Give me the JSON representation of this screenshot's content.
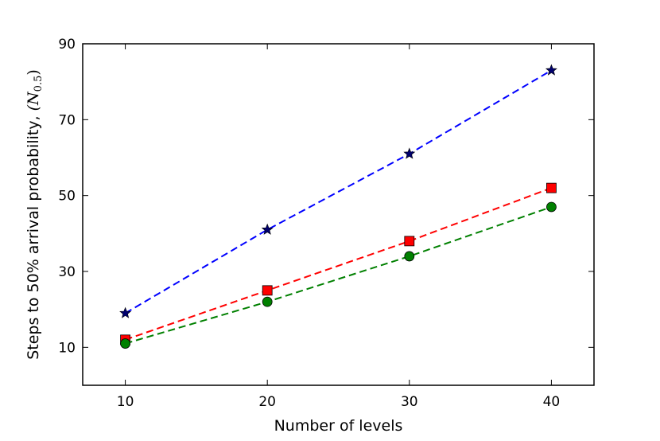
{
  "chart_data": {
    "type": "line",
    "title": "",
    "xlabel": "Number of levels",
    "ylabel": "Steps to 50% arrival probability, ",
    "ylabel_math": "(N",
    "ylabel_sub": "0.5",
    "ylabel_close": ")",
    "xlim": [
      7,
      43
    ],
    "ylim": [
      0,
      90
    ],
    "xticks": [
      10,
      20,
      30,
      40
    ],
    "yticks": [
      10,
      30,
      50,
      70,
      90
    ],
    "grid": false,
    "legend": "none",
    "x": [
      10,
      20,
      30,
      40
    ],
    "series": [
      {
        "name": "blue-star",
        "color": "#0000ff",
        "marker": "star",
        "values": [
          19,
          41,
          61,
          83
        ]
      },
      {
        "name": "red-square",
        "color": "#ff0000",
        "marker": "square",
        "values": [
          12,
          25,
          38,
          52
        ]
      },
      {
        "name": "green-circle",
        "color": "#008000",
        "marker": "circle",
        "values": [
          11,
          22,
          34,
          47
        ]
      }
    ]
  }
}
